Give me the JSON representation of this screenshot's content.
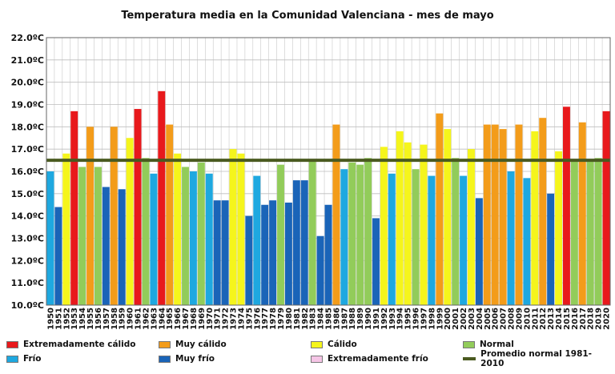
{
  "chart_data": {
    "type": "bar",
    "title": "Temperatura media en la Comunidad Valenciana - mes de mayo",
    "ylim": [
      10.0,
      22.0
    ],
    "y_ticks": [
      "10.0ºC",
      "11.0ºC",
      "12.0ºC",
      "13.0ºC",
      "14.0ºC",
      "15.0ºC",
      "16.0ºC",
      "17.0ºC",
      "18.0ºC",
      "19.0ºC",
      "20.0ºC",
      "21.0ºC",
      "22.0ºC"
    ],
    "grid": true,
    "legend_position": "bottom",
    "reference_line": {
      "name": "Promedio normal 1981-2010",
      "value": 16.5,
      "color": "#4a5a20"
    },
    "categories_legend": [
      {
        "key": "EC",
        "name": "Extremadamente cálido",
        "color": "#e8191c"
      },
      {
        "key": "MC",
        "name": "Muy cálido",
        "color": "#f39c1a"
      },
      {
        "key": "C",
        "name": "Cálido",
        "color": "#f5f51c"
      },
      {
        "key": "N",
        "name": "Normal",
        "color": "#92cc5a"
      },
      {
        "key": "F",
        "name": "Frío",
        "color": "#1ea8e0"
      },
      {
        "key": "MF",
        "name": "Muy frío",
        "color": "#1a64b8"
      },
      {
        "key": "EF",
        "name": "Extremadamente frío",
        "color": "#f5c5e6"
      }
    ],
    "years": [
      "1950",
      "1951",
      "1952",
      "1953",
      "1954",
      "1955",
      "1956",
      "1957",
      "1958",
      "1959",
      "1960",
      "1961",
      "1962",
      "1963",
      "1964",
      "1965",
      "1966",
      "1967",
      "1968",
      "1969",
      "1970",
      "1971",
      "1972",
      "1973",
      "1974",
      "1975",
      "1976",
      "1977",
      "1978",
      "1979",
      "1980",
      "1981",
      "1982",
      "1983",
      "1984",
      "1985",
      "1986",
      "1987",
      "1988",
      "1989",
      "1990",
      "1991",
      "1992",
      "1993",
      "1994",
      "1995",
      "1996",
      "1997",
      "1998",
      "1999",
      "2000",
      "2001",
      "2002",
      "2003",
      "2004",
      "2005",
      "2006",
      "2007",
      "2008",
      "2009",
      "2010",
      "2011",
      "2012",
      "2013",
      "2014",
      "2015",
      "2016",
      "2017",
      "2018",
      "2019",
      "2020"
    ],
    "values": [
      16.0,
      14.4,
      16.8,
      18.7,
      16.2,
      18.0,
      16.2,
      15.3,
      18.0,
      15.2,
      17.5,
      18.8,
      16.6,
      15.9,
      19.6,
      18.1,
      16.8,
      16.2,
      16.0,
      16.4,
      15.9,
      14.7,
      14.7,
      17.0,
      16.8,
      14.0,
      15.8,
      14.5,
      14.7,
      16.3,
      14.6,
      15.6,
      15.6,
      16.5,
      13.1,
      14.5,
      18.1,
      16.1,
      16.4,
      16.3,
      16.6,
      13.9,
      17.1,
      15.9,
      17.8,
      17.3,
      16.1,
      17.2,
      15.8,
      18.6,
      17.9,
      16.6,
      15.8,
      17.0,
      14.8,
      18.1,
      18.1,
      17.9,
      16.0,
      18.1,
      15.7,
      17.8,
      18.4,
      15.0,
      16.9,
      18.9,
      16.5,
      18.2,
      16.5,
      16.6,
      18.7
    ],
    "classes": [
      "F",
      "MF",
      "C",
      "EC",
      "N",
      "MC",
      "N",
      "MF",
      "MC",
      "MF",
      "C",
      "EC",
      "N",
      "F",
      "EC",
      "MC",
      "C",
      "N",
      "F",
      "N",
      "F",
      "MF",
      "MF",
      "C",
      "C",
      "MF",
      "F",
      "MF",
      "MF",
      "N",
      "MF",
      "MF",
      "MF",
      "N",
      "MF",
      "MF",
      "MC",
      "F",
      "N",
      "N",
      "N",
      "MF",
      "C",
      "F",
      "C",
      "C",
      "N",
      "C",
      "F",
      "MC",
      "C",
      "N",
      "F",
      "C",
      "MF",
      "MC",
      "MC",
      "MC",
      "F",
      "MC",
      "F",
      "C",
      "MC",
      "MF",
      "C",
      "EC",
      "N",
      "MC",
      "N",
      "N",
      "EC"
    ]
  }
}
